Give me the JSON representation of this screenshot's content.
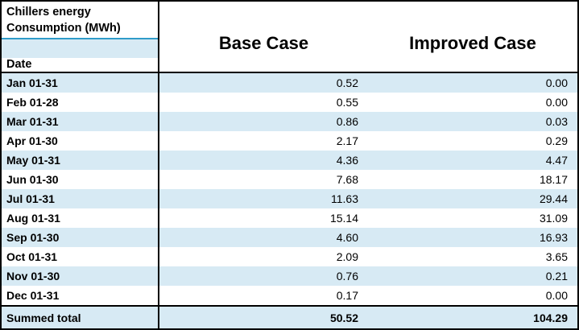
{
  "table": {
    "title_line1": "Chillers energy",
    "title_line2": "Consumption (MWh)",
    "date_header": "Date",
    "columns": [
      {
        "label": "Base Case"
      },
      {
        "label": "Improved Case"
      }
    ],
    "rows": [
      {
        "date": "Jan 01-31",
        "base": "0.52",
        "improved": "0.00"
      },
      {
        "date": "Feb 01-28",
        "base": "0.55",
        "improved": "0.00"
      },
      {
        "date": "Mar 01-31",
        "base": "0.86",
        "improved": "0.03"
      },
      {
        "date": "Apr 01-30",
        "base": "2.17",
        "improved": "0.29"
      },
      {
        "date": "May 01-31",
        "base": "4.36",
        "improved": "4.47"
      },
      {
        "date": "Jun 01-30",
        "base": "7.68",
        "improved": "18.17"
      },
      {
        "date": "Jul 01-31",
        "base": "11.63",
        "improved": "29.44"
      },
      {
        "date": "Aug 01-31",
        "base": "15.14",
        "improved": "31.09"
      },
      {
        "date": "Sep 01-30",
        "base": "4.60",
        "improved": "16.93"
      },
      {
        "date": "Oct 01-31",
        "base": "2.09",
        "improved": "3.65"
      },
      {
        "date": "Nov 01-30",
        "base": "0.76",
        "improved": "0.21"
      },
      {
        "date": "Dec 01-31",
        "base": "0.17",
        "improved": "0.00"
      }
    ],
    "total": {
      "label": "Summed total",
      "base": "50.52",
      "improved": "104.29"
    }
  },
  "colors": {
    "band_fill": "#d7eaf4",
    "band_line": "#2f9cc9",
    "grid": "#000000",
    "text": "#000000"
  }
}
